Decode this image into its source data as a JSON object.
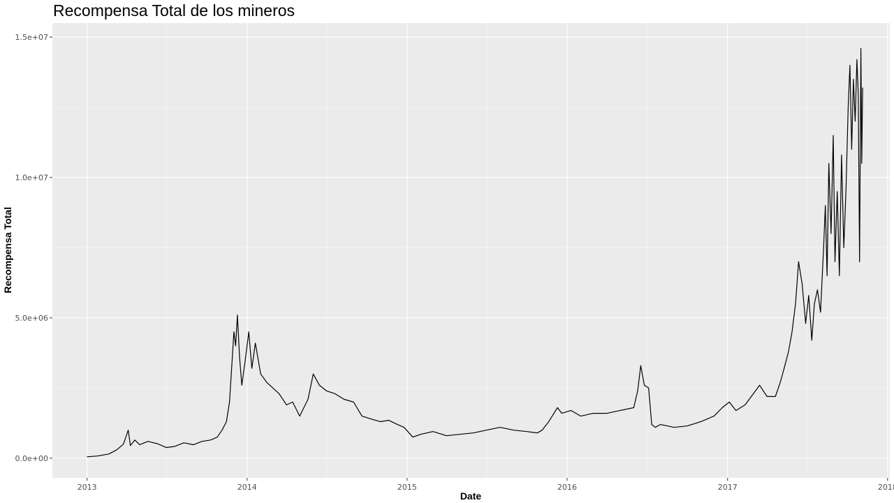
{
  "chart_data": {
    "type": "line",
    "title": "Recompensa Total de los mineros",
    "xlabel": "Date",
    "ylabel": "Recompensa Total",
    "x_type": "date",
    "xlim": [
      "2012-10-14",
      "2018-01-06"
    ],
    "ylim": [
      -700000,
      15500000
    ],
    "grid": true,
    "legend": "none",
    "colors": {
      "panel_background": "#ebebeb",
      "grid_major": "#ffffff",
      "line": "#000000",
      "tick_label": "#4d4d4d"
    },
    "x_ticks": [
      {
        "value": "2013-01-01",
        "label": "2013"
      },
      {
        "value": "2014-01-01",
        "label": "2014"
      },
      {
        "value": "2015-01-01",
        "label": "2015"
      },
      {
        "value": "2016-01-01",
        "label": "2016"
      },
      {
        "value": "2017-01-01",
        "label": "2017"
      },
      {
        "value": "2018-01-01",
        "label": "2018"
      }
    ],
    "y_ticks": [
      {
        "value": 0,
        "label": "0.0e+00"
      },
      {
        "value": 5000000,
        "label": "5.0e+06"
      },
      {
        "value": 10000000,
        "label": "1.0e+07"
      },
      {
        "value": 15000000,
        "label": "1.5e+07"
      }
    ],
    "series": [
      {
        "x": [
          "2013-01-01",
          "2013-01-25",
          "2013-02-20",
          "2013-03-10",
          "2013-03-25",
          "2013-04-05",
          "2013-04-10",
          "2013-04-20",
          "2013-05-01",
          "2013-05-20",
          "2013-06-10",
          "2013-07-01",
          "2013-07-20",
          "2013-08-10",
          "2013-09-01",
          "2013-09-20",
          "2013-10-10",
          "2013-10-25",
          "2013-11-05",
          "2013-11-15",
          "2013-11-22",
          "2013-11-28",
          "2013-12-02",
          "2013-12-06",
          "2013-12-10",
          "2013-12-15",
          "2013-12-20",
          "2013-12-28",
          "2014-01-05",
          "2014-01-12",
          "2014-01-20",
          "2014-02-01",
          "2014-02-15",
          "2014-03-01",
          "2014-03-15",
          "2014-04-01",
          "2014-04-15",
          "2014-05-01",
          "2014-05-20",
          "2014-06-01",
          "2014-06-15",
          "2014-07-01",
          "2014-07-20",
          "2014-08-10",
          "2014-09-01",
          "2014-09-20",
          "2014-10-10",
          "2014-11-01",
          "2014-11-20",
          "2014-12-10",
          "2014-12-25",
          "2015-01-14",
          "2015-02-01",
          "2015-03-01",
          "2015-04-01",
          "2015-05-01",
          "2015-06-01",
          "2015-07-01",
          "2015-08-01",
          "2015-09-01",
          "2015-10-01",
          "2015-10-25",
          "2015-11-05",
          "2015-11-20",
          "2015-12-10",
          "2015-12-20",
          "2016-01-10",
          "2016-02-01",
          "2016-03-01",
          "2016-04-01",
          "2016-05-01",
          "2016-06-01",
          "2016-06-10",
          "2016-06-17",
          "2016-06-25",
          "2016-07-05",
          "2016-07-12",
          "2016-07-20",
          "2016-08-01",
          "2016-09-01",
          "2016-10-01",
          "2016-11-01",
          "2016-12-01",
          "2016-12-20",
          "2017-01-05",
          "2017-01-20",
          "2017-02-10",
          "2017-03-01",
          "2017-03-15",
          "2017-04-01",
          "2017-04-20",
          "2017-05-01",
          "2017-05-10",
          "2017-05-20",
          "2017-05-28",
          "2017-06-05",
          "2017-06-12",
          "2017-06-20",
          "2017-06-28",
          "2017-07-05",
          "2017-07-12",
          "2017-07-18",
          "2017-07-25",
          "2017-08-01",
          "2017-08-08",
          "2017-08-12",
          "2017-08-16",
          "2017-08-20",
          "2017-08-25",
          "2017-08-30",
          "2017-09-03",
          "2017-09-08",
          "2017-09-13",
          "2017-09-18",
          "2017-09-23",
          "2017-09-28",
          "2017-10-03",
          "2017-10-07",
          "2017-10-11",
          "2017-10-15",
          "2017-10-19",
          "2017-10-23",
          "2017-10-26",
          "2017-10-29",
          "2017-11-01",
          "2017-11-03",
          "2017-11-05"
        ],
        "y": [
          50000,
          80000,
          150000,
          300000,
          500000,
          1000000,
          450000,
          650000,
          480000,
          600000,
          520000,
          380000,
          420000,
          550000,
          480000,
          600000,
          650000,
          750000,
          1000000,
          1300000,
          2000000,
          3500000,
          4500000,
          4000000,
          5100000,
          3600000,
          2600000,
          3500000,
          4500000,
          3200000,
          4100000,
          3000000,
          2700000,
          2500000,
          2300000,
          1900000,
          2000000,
          1500000,
          2100000,
          3000000,
          2600000,
          2400000,
          2300000,
          2100000,
          2000000,
          1500000,
          1400000,
          1300000,
          1350000,
          1200000,
          1100000,
          750000,
          850000,
          950000,
          800000,
          850000,
          900000,
          1000000,
          1100000,
          1000000,
          950000,
          900000,
          1000000,
          1300000,
          1800000,
          1600000,
          1700000,
          1500000,
          1600000,
          1600000,
          1700000,
          1800000,
          2400000,
          3300000,
          2600000,
          2500000,
          1200000,
          1100000,
          1200000,
          1100000,
          1150000,
          1300000,
          1500000,
          1800000,
          2000000,
          1700000,
          1900000,
          2300000,
          2600000,
          2200000,
          2200000,
          2700000,
          3200000,
          3800000,
          4500000,
          5500000,
          7000000,
          6200000,
          4800000,
          5800000,
          4200000,
          5500000,
          6000000,
          5200000,
          7500000,
          9000000,
          6500000,
          10500000,
          8000000,
          11500000,
          7000000,
          9500000,
          6500000,
          10800000,
          7500000,
          9500000,
          12500000,
          14000000,
          11000000,
          13500000,
          12000000,
          14200000,
          13000000,
          7000000,
          14600000,
          10500000,
          13200000
        ]
      }
    ]
  }
}
